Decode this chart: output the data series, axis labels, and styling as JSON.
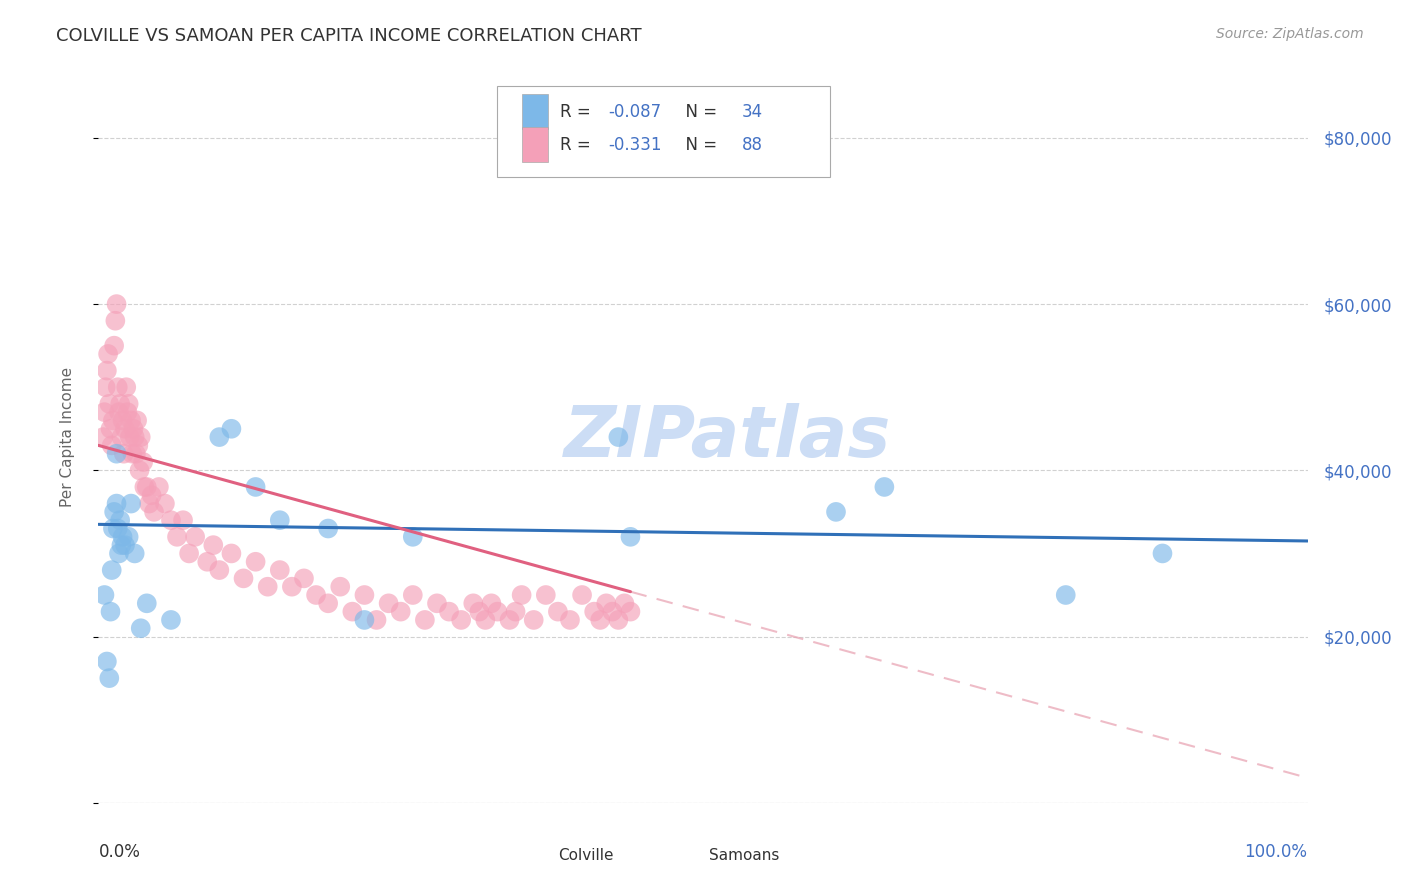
{
  "title": "COLVILLE VS SAMOAN PER CAPITA INCOME CORRELATION CHART",
  "source": "Source: ZipAtlas.com",
  "ylabel": "Per Capita Income",
  "xlim": [
    0.0,
    1.0
  ],
  "ylim": [
    0,
    88000
  ],
  "colville_R": -0.087,
  "colville_N": 34,
  "samoan_R": -0.331,
  "samoan_N": 88,
  "colville_color": "#7db8e8",
  "samoan_color": "#f4a0b8",
  "colville_line_color": "#3070b8",
  "samoan_line_color": "#e06080",
  "samoan_line_dashed_color": "#e8a0b0",
  "watermark_color": "#ccddf5",
  "background_color": "#ffffff",
  "grid_color": "#cccccc",
  "title_color": "#333333",
  "axis_label_color": "#666666",
  "right_tick_color": "#4472c4",
  "legend_text_color": "#333333",
  "colville_x": [
    0.005,
    0.007,
    0.009,
    0.01,
    0.011,
    0.012,
    0.013,
    0.015,
    0.015,
    0.016,
    0.017,
    0.018,
    0.019,
    0.02,
    0.022,
    0.025,
    0.027,
    0.03,
    0.035,
    0.04,
    0.06,
    0.1,
    0.11,
    0.13,
    0.15,
    0.19,
    0.22,
    0.26,
    0.43,
    0.44,
    0.61,
    0.65,
    0.8,
    0.88
  ],
  "colville_y": [
    25000,
    17000,
    15000,
    23000,
    28000,
    33000,
    35000,
    36000,
    42000,
    33000,
    30000,
    34000,
    31000,
    32000,
    31000,
    32000,
    36000,
    30000,
    21000,
    24000,
    22000,
    44000,
    45000,
    38000,
    34000,
    33000,
    22000,
    32000,
    44000,
    32000,
    35000,
    38000,
    25000,
    30000
  ],
  "samoan_x": [
    0.004,
    0.005,
    0.006,
    0.007,
    0.008,
    0.009,
    0.01,
    0.011,
    0.012,
    0.013,
    0.014,
    0.015,
    0.016,
    0.017,
    0.018,
    0.019,
    0.02,
    0.021,
    0.022,
    0.023,
    0.024,
    0.025,
    0.026,
    0.027,
    0.028,
    0.029,
    0.03,
    0.031,
    0.032,
    0.033,
    0.034,
    0.035,
    0.037,
    0.038,
    0.04,
    0.042,
    0.044,
    0.046,
    0.05,
    0.055,
    0.06,
    0.065,
    0.07,
    0.075,
    0.08,
    0.09,
    0.095,
    0.1,
    0.11,
    0.12,
    0.13,
    0.14,
    0.15,
    0.16,
    0.17,
    0.18,
    0.19,
    0.2,
    0.21,
    0.22,
    0.23,
    0.24,
    0.25,
    0.26,
    0.27,
    0.28,
    0.29,
    0.3,
    0.31,
    0.315,
    0.32,
    0.325,
    0.33,
    0.34,
    0.345,
    0.35,
    0.36,
    0.37,
    0.38,
    0.39,
    0.4,
    0.41,
    0.415,
    0.42,
    0.425,
    0.43,
    0.435,
    0.44
  ],
  "samoan_y": [
    44000,
    47000,
    50000,
    52000,
    54000,
    48000,
    45000,
    43000,
    46000,
    55000,
    58000,
    60000,
    50000,
    47000,
    48000,
    44000,
    46000,
    42000,
    45000,
    50000,
    47000,
    48000,
    44000,
    46000,
    42000,
    45000,
    44000,
    42000,
    46000,
    43000,
    40000,
    44000,
    41000,
    38000,
    38000,
    36000,
    37000,
    35000,
    38000,
    36000,
    34000,
    32000,
    34000,
    30000,
    32000,
    29000,
    31000,
    28000,
    30000,
    27000,
    29000,
    26000,
    28000,
    26000,
    27000,
    25000,
    24000,
    26000,
    23000,
    25000,
    22000,
    24000,
    23000,
    25000,
    22000,
    24000,
    23000,
    22000,
    24000,
    23000,
    22000,
    24000,
    23000,
    22000,
    23000,
    25000,
    22000,
    25000,
    23000,
    22000,
    25000,
    23000,
    22000,
    24000,
    23000,
    22000,
    24000,
    23000
  ]
}
